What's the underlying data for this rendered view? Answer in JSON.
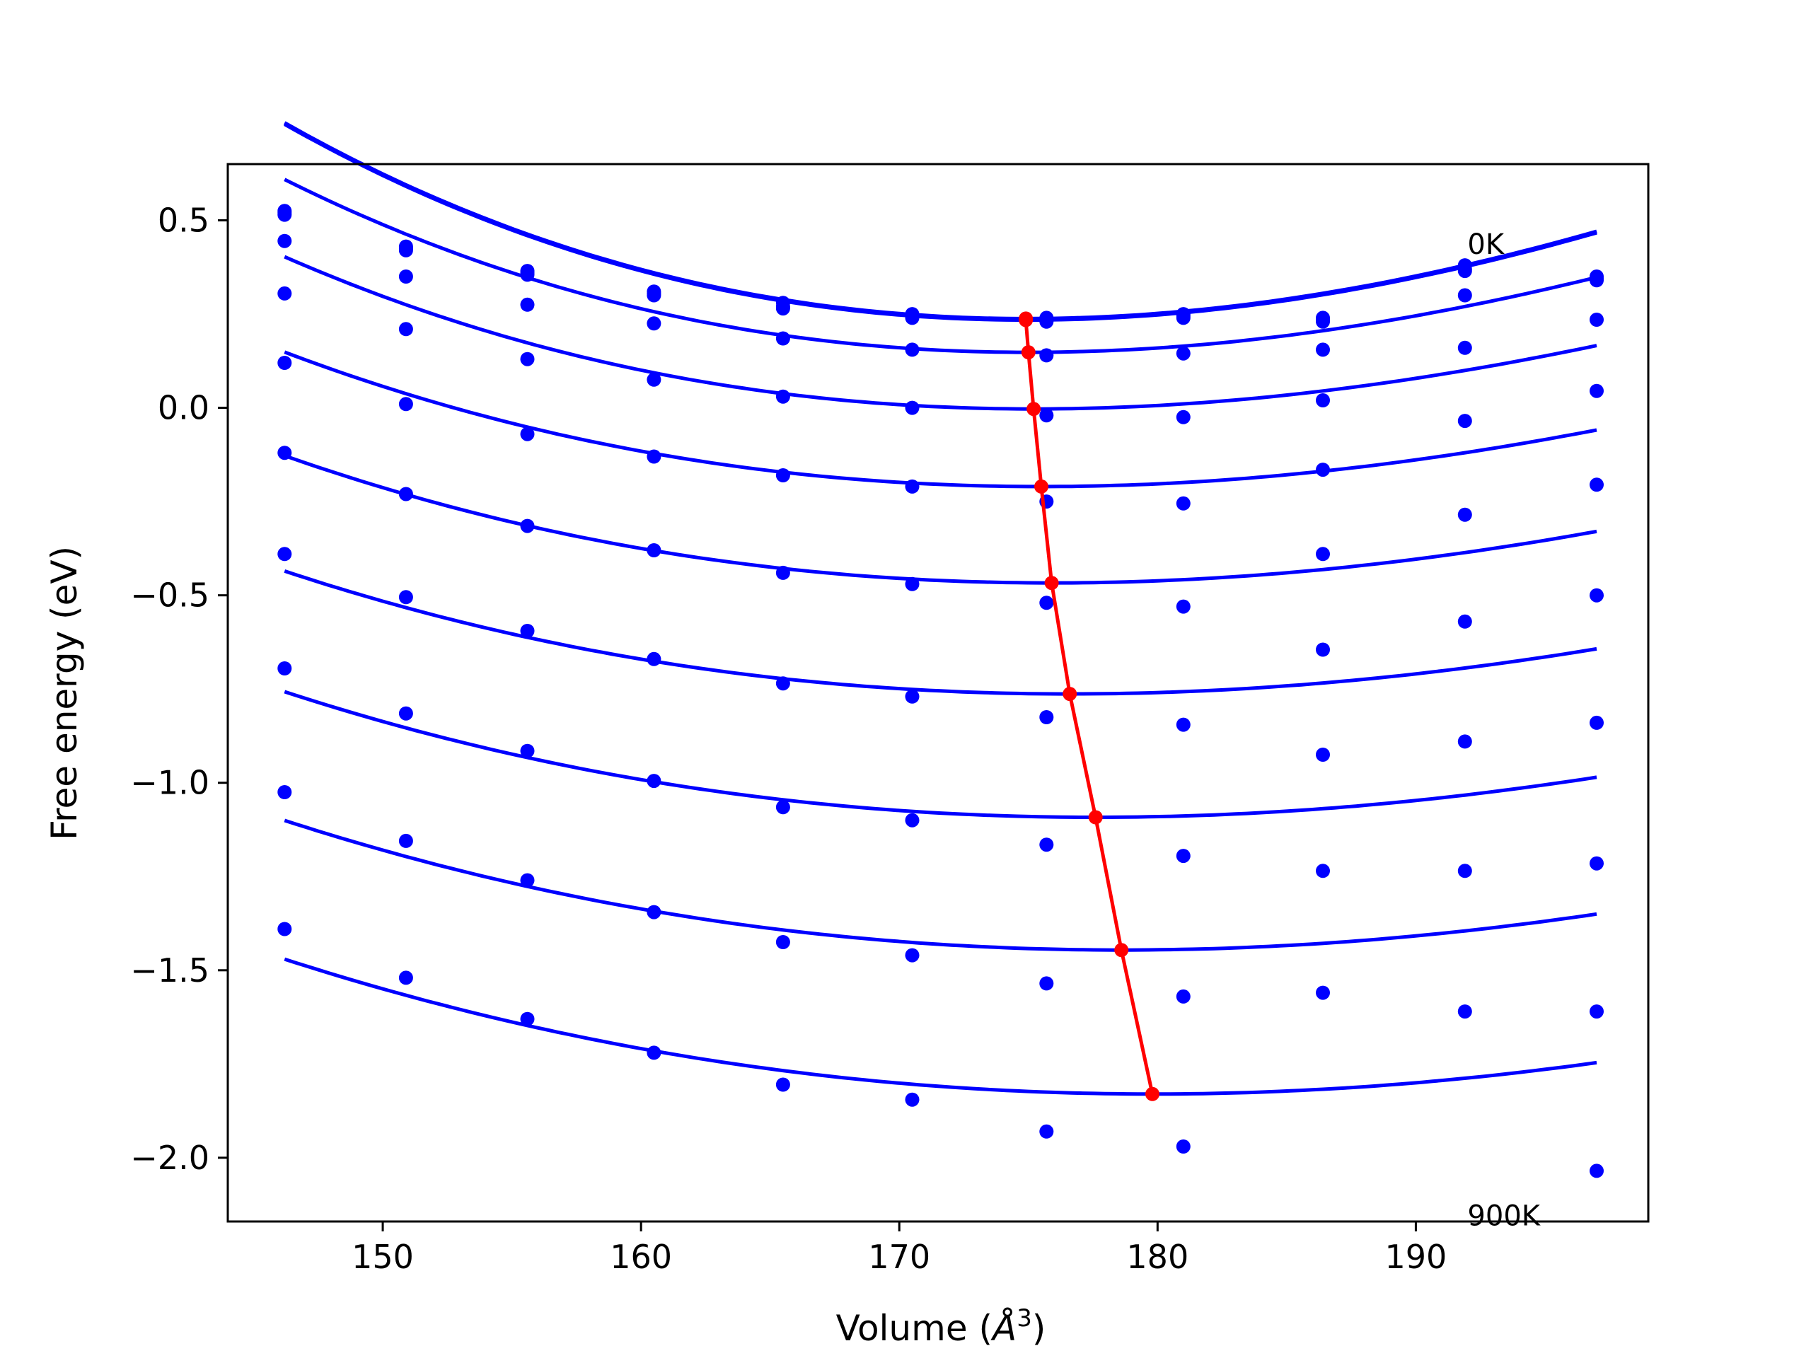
{
  "chart_data": {
    "type": "line",
    "title": "",
    "xlabel_main": "Volume (",
    "xlabel_unit": "Å",
    "xlabel_exp": "3",
    "xlabel_close": ")",
    "ylabel": "Free energy (eV)",
    "xlim": [
      144,
      199
    ],
    "ylim": [
      -2.17,
      0.65
    ],
    "xticks": [
      150,
      160,
      170,
      180,
      190
    ],
    "xtick_labels": [
      "150",
      "160",
      "170",
      "180",
      "190"
    ],
    "yticks": [
      0.5,
      0.0,
      -0.5,
      -1.0,
      -1.5,
      -2.0
    ],
    "ytick_labels": [
      "0.5",
      "0.0",
      "−0.5",
      "−1.0",
      "−1.5",
      "−2.0"
    ],
    "grid": false,
    "annotations": [
      {
        "text": "0K",
        "x": 192,
        "y": 0.41
      },
      {
        "text": "900K",
        "x": 192,
        "y": -2.18
      }
    ],
    "colors": {
      "fit": "#0000ff",
      "points": "#0000ff",
      "minima": "#ff0000"
    },
    "volumes": [
      146.2,
      150.9,
      155.6,
      160.5,
      165.5,
      170.5,
      175.7,
      181.0,
      186.4,
      191.9,
      197.0
    ],
    "series": [
      {
        "fit": {
          "a": 0.238,
          "v0": 174.9,
          "k1": 0.000545,
          "k2": 3.1e-06
        },
        "points": [
          0.525,
          0.43,
          0.365,
          0.31,
          0.28,
          0.25,
          0.24,
          0.25,
          0.24,
          0.38,
          0.35
        ]
      },
      {
        "fit": {
          "a": 0.236,
          "v0": 174.9,
          "k1": 0.000545,
          "k2": 3.1e-06
        },
        "points": [
          0.52,
          0.425,
          0.36,
          0.305,
          0.27,
          0.245,
          0.235,
          0.245,
          0.235,
          0.37,
          0.345
        ]
      },
      {
        "fit": {
          "a": 0.234,
          "v0": 174.9,
          "k1": 0.000545,
          "k2": 3.1e-06
        },
        "points": [
          0.515,
          0.42,
          0.355,
          0.3,
          0.265,
          0.24,
          0.23,
          0.24,
          0.23,
          0.365,
          0.34
        ]
      },
      {
        "fit": {
          "a": 0.148,
          "v0": 175.0,
          "k1": 0.000475,
          "k2": 2.8e-06
        },
        "points": [
          0.445,
          0.35,
          0.275,
          0.225,
          0.185,
          0.155,
          0.14,
          0.145,
          0.155,
          0.3,
          0.235
        ]
      },
      {
        "fit": {
          "a": -0.003,
          "v0": 175.2,
          "k1": 0.00041,
          "k2": 2.5e-06
        },
        "points": [
          0.305,
          0.21,
          0.13,
          0.075,
          0.03,
          0.0,
          -0.02,
          -0.025,
          0.02,
          0.16,
          0.045
        ]
      },
      {
        "fit": {
          "a": -0.21,
          "v0": 175.5,
          "k1": 0.000365,
          "k2": 1.8e-06
        },
        "points": [
          0.12,
          0.01,
          -0.07,
          -0.13,
          -0.18,
          -0.21,
          -0.25,
          -0.255,
          -0.165,
          -0.035,
          -0.205
        ]
      },
      {
        "fit": {
          "a": -0.467,
          "v0": 175.9,
          "k1": 0.00034,
          "k2": 1.5e-06
        },
        "points": [
          -0.12,
          -0.23,
          -0.315,
          -0.38,
          -0.44,
          -0.47,
          -0.52,
          -0.53,
          -0.39,
          -0.285,
          -0.5
        ]
      },
      {
        "fit": {
          "a": -0.763,
          "v0": 176.6,
          "k1": 0.000315,
          "k2": 1.3e-06
        },
        "points": [
          -0.39,
          -0.505,
          -0.595,
          -0.67,
          -0.735,
          -0.77,
          -0.825,
          -0.845,
          -0.645,
          -0.57,
          -0.84
        ]
      },
      {
        "fit": {
          "a": -1.092,
          "v0": 177.6,
          "k1": 0.000305,
          "k2": 1.1e-06
        },
        "points": [
          -0.695,
          -0.815,
          -0.915,
          -0.995,
          -1.065,
          -1.1,
          -1.165,
          -1.195,
          -0.925,
          -0.89,
          -1.215
        ]
      },
      {
        "fit": {
          "a": -1.446,
          "v0": 178.6,
          "k1": 0.0003,
          "k2": 9e-07
        },
        "points": [
          -1.025,
          -1.155,
          -1.26,
          -1.345,
          -1.425,
          -1.46,
          -1.535,
          -1.57,
          -1.235,
          -1.235,
          -1.61
        ]
      },
      {
        "fit": {
          "a": -1.83,
          "v0": 179.8,
          "k1": 0.000295,
          "k2": 7e-07
        },
        "points": [
          -1.39,
          -1.52,
          -1.63,
          -1.72,
          -1.805,
          -1.845,
          -1.93,
          -1.97,
          -1.56,
          -1.61,
          -2.035
        ]
      }
    ],
    "minima": {
      "x": [
        174.9,
        174.9,
        174.9,
        175.0,
        175.2,
        175.5,
        175.9,
        176.6,
        177.6,
        178.6,
        179.8
      ],
      "y": [
        0.238,
        0.236,
        0.234,
        0.148,
        -0.003,
        -0.21,
        -0.467,
        -0.763,
        -1.092,
        -1.446,
        -1.83
      ]
    }
  }
}
